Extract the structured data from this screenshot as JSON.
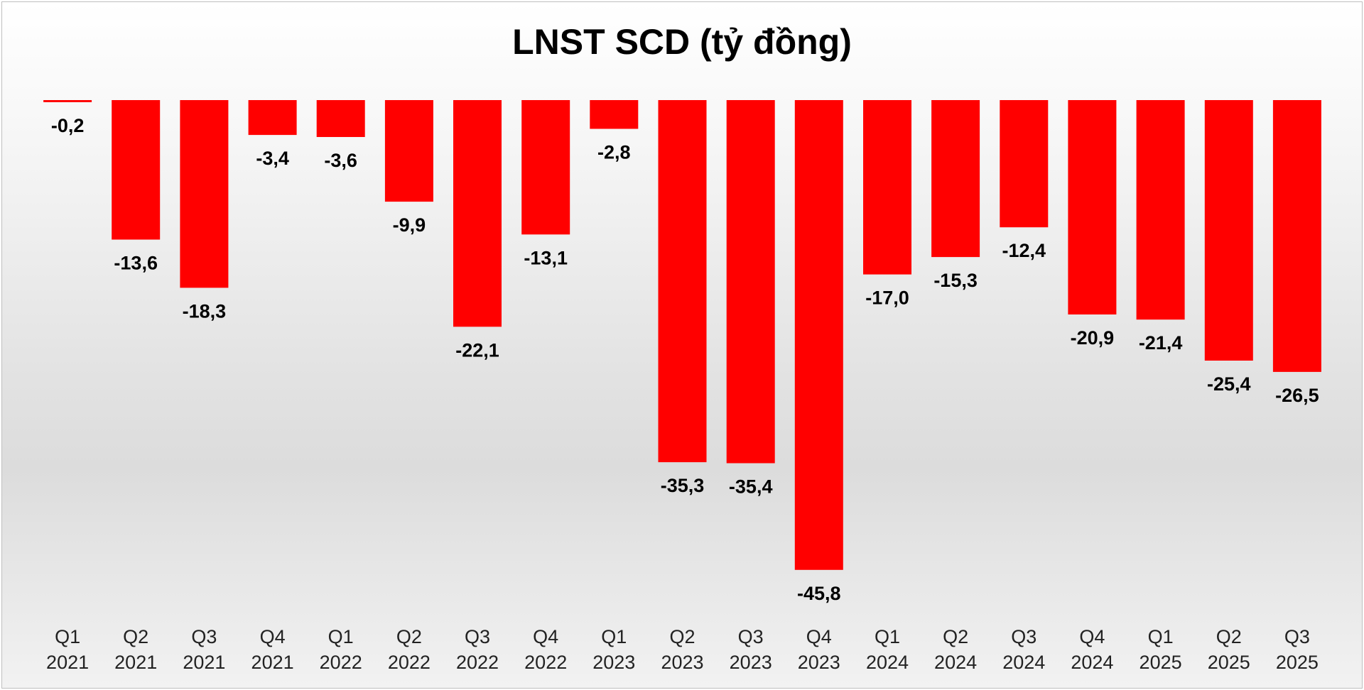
{
  "chart_data": {
    "type": "bar",
    "title": "LNST SCD (tỷ đồng)",
    "xlabel": "",
    "ylabel": "",
    "ylim": [
      -50,
      0
    ],
    "grid": false,
    "bar_color": "#ff0000",
    "categories": [
      [
        "Q1",
        "2021"
      ],
      [
        "Q2",
        "2021"
      ],
      [
        "Q3",
        "2021"
      ],
      [
        "Q4",
        "2021"
      ],
      [
        "Q1",
        "2022"
      ],
      [
        "Q2",
        "2022"
      ],
      [
        "Q3",
        "2022"
      ],
      [
        "Q4",
        "2022"
      ],
      [
        "Q1",
        "2023"
      ],
      [
        "Q2",
        "2023"
      ],
      [
        "Q3",
        "2023"
      ],
      [
        "Q4",
        "2023"
      ],
      [
        "Q1",
        "2024"
      ],
      [
        "Q2",
        "2024"
      ],
      [
        "Q3",
        "2024"
      ],
      [
        "Q4",
        "2024"
      ],
      [
        "Q1",
        "2025"
      ],
      [
        "Q2",
        "2025"
      ],
      [
        "Q3",
        "2025"
      ]
    ],
    "values": [
      -0.2,
      -13.6,
      -18.3,
      -3.4,
      -3.6,
      -9.9,
      -22.1,
      -13.1,
      -2.8,
      -35.3,
      -35.4,
      -45.8,
      -17.0,
      -15.3,
      -12.4,
      -20.9,
      -21.4,
      -25.4,
      -26.5
    ],
    "data_labels": [
      "-0,2",
      "-13,6",
      "-18,3",
      "-3,4",
      "-3,6",
      "-9,9",
      "-22,1",
      "-13,1",
      "-2,8",
      "-35,3",
      "-35,4",
      "-45,8",
      "-17,0",
      "-15,3",
      "-12,4",
      "-20,9",
      "-21,4",
      "-25,4",
      "-26,5"
    ]
  }
}
